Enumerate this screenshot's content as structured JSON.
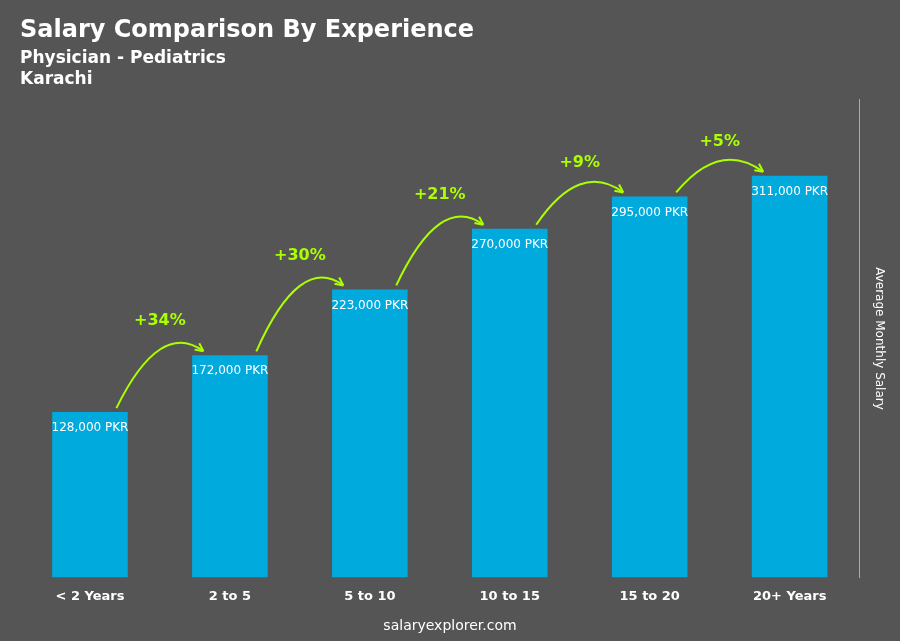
{
  "chart_data": {
    "type": "bar",
    "title": "Salary Comparison By Experience",
    "subtitle": [
      "Physician - Pediatrics",
      "Karachi"
    ],
    "y_label": "Average Monthly Salary",
    "footer": "salaryexplorer.com",
    "categories": [
      "< 2 Years",
      "2 to 5",
      "5 to 10",
      "10 to 15",
      "15 to 20",
      "20+ Years"
    ],
    "values": [
      128000,
      172000,
      223000,
      270000,
      295000,
      311000
    ],
    "value_labels": [
      "128,000 PKR",
      "172,000 PKR",
      "223,000 PKR",
      "270,000 PKR",
      "295,000 PKR",
      "311,000 PKR"
    ],
    "data_labels": true,
    "color": "#00aadd",
    "ylim": [
      0,
      370000
    ],
    "tick_labels": "x",
    "grid": false,
    "annotations": [
      {
        "text": "+34%",
        "from": "< 2 Years",
        "to": "2 to 5"
      },
      {
        "text": "+30%",
        "from": "2 to 5",
        "to": "5 to 10"
      },
      {
        "text": "+21%",
        "from": "5 to 10",
        "to": "10 to 15"
      },
      {
        "text": "+9%",
        "from": "10 to 15",
        "to": "15 to 20"
      },
      {
        "text": "+5%",
        "from": "15 to 20",
        "to": "20+ Years"
      }
    ]
  }
}
